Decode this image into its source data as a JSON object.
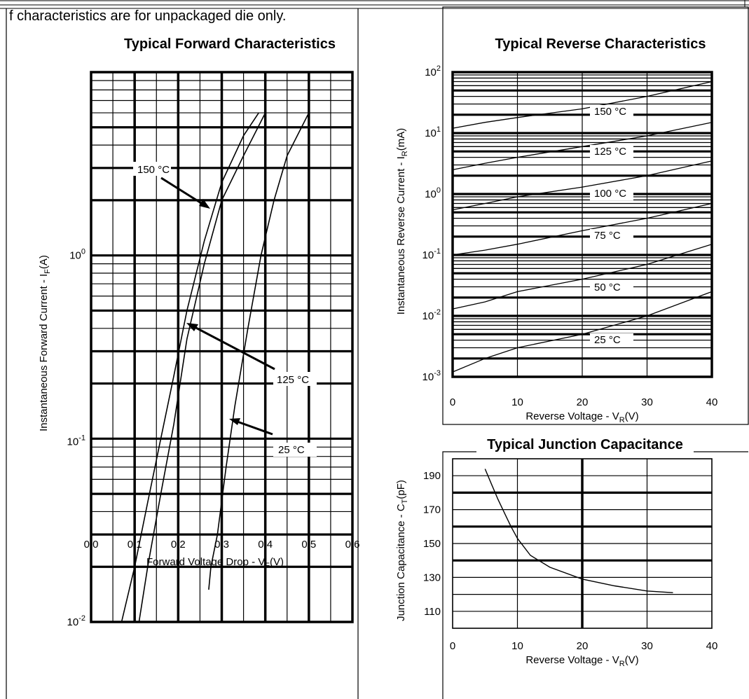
{
  "note": "f characteristics are for unpackaged die only.",
  "charts": {
    "forward": {
      "title": "Typical Forward Characteristics",
      "xlabel": "Forward Voltage Drop - V",
      "xlabel_sub": "F",
      "xlabel_unit": "(V)",
      "ylabel": "Instantaneous Forward Current - I",
      "ylabel_sub": "F",
      "ylabel_unit": "(A)",
      "xticks": [
        "0.0",
        "0.1",
        "0.2",
        "0.3",
        "0.4",
        "0.5",
        "0.6"
      ],
      "ytick_labels": [
        {
          "base": "10",
          "exp": "-2",
          "value": 0.01
        },
        {
          "base": "10",
          "exp": "-1",
          "value": 0.1
        },
        {
          "base": "10",
          "exp": "0",
          "value": 1
        }
      ],
      "annotations": [
        "150 °C",
        "125 °C",
        "25 °C"
      ]
    },
    "reverse": {
      "title": "Typical Reverse Characteristics",
      "xlabel": "Reverse Voltage - V",
      "xlabel_sub": "R",
      "xlabel_unit": "(V)",
      "ylabel": "Instantaneous Reverse Current - I",
      "ylabel_sub": "R",
      "ylabel_unit": "(mA)",
      "xticks": [
        "0",
        "10",
        "20",
        "30",
        "40"
      ],
      "ytick_labels": [
        {
          "base": "10",
          "exp": "-3",
          "value": 0.001
        },
        {
          "base": "10",
          "exp": "-2",
          "value": 0.01
        },
        {
          "base": "10",
          "exp": "-1",
          "value": 0.1
        },
        {
          "base": "10",
          "exp": "0",
          "value": 1
        },
        {
          "base": "10",
          "exp": "1",
          "value": 10
        },
        {
          "base": "10",
          "exp": "2",
          "value": 100
        }
      ],
      "curve_labels": [
        "150 °C",
        "125 °C",
        "100 °C",
        "75 °C",
        "50 °C",
        "25 °C"
      ]
    },
    "capacitance": {
      "title": "Typical Junction Capacitance",
      "xlabel": "Reverse Voltage - V",
      "xlabel_sub": "R",
      "xlabel_unit": "(V)",
      "ylabel": "Junction Capacitance - C",
      "ylabel_sub": "T",
      "ylabel_unit": "(pF)",
      "xticks": [
        "0",
        "10",
        "20",
        "30",
        "40"
      ],
      "yticks": [
        "110",
        "130",
        "150",
        "170",
        "190"
      ]
    }
  },
  "chart_data": [
    {
      "type": "line",
      "title": "Typical Forward Characteristics",
      "xlabel": "Forward Voltage Drop - VF (V)",
      "ylabel": "Instantaneous Forward Current - IF (A)",
      "yscale": "log",
      "xlim": [
        0.0,
        0.6
      ],
      "ylim": [
        0.01,
        10
      ],
      "grid": true,
      "series": [
        {
          "name": "150 °C",
          "x": [
            0.07,
            0.1,
            0.13,
            0.16,
            0.19,
            0.22,
            0.26,
            0.3,
            0.35,
            0.385
          ],
          "y": [
            0.01,
            0.02,
            0.045,
            0.1,
            0.22,
            0.5,
            1.2,
            2.5,
            4.5,
            6
          ]
        },
        {
          "name": "125 °C",
          "x": [
            0.11,
            0.13,
            0.16,
            0.19,
            0.22,
            0.26,
            0.3,
            0.35,
            0.4
          ],
          "y": [
            0.01,
            0.02,
            0.05,
            0.12,
            0.35,
            0.9,
            2.0,
            3.5,
            6
          ]
        },
        {
          "name": "25 °C",
          "x": [
            0.27,
            0.275,
            0.29,
            0.31,
            0.33,
            0.36,
            0.39,
            0.42,
            0.45,
            0.5
          ],
          "y": [
            0.015,
            0.02,
            0.03,
            0.07,
            0.15,
            0.4,
            1.0,
            2.0,
            3.5,
            6
          ]
        }
      ]
    },
    {
      "type": "line",
      "title": "Typical Reverse Characteristics",
      "xlabel": "Reverse Voltage - VR (V)",
      "ylabel": "Instantaneous Reverse Current - IR (mA)",
      "yscale": "log",
      "xlim": [
        0,
        40
      ],
      "ylim": [
        0.001,
        100
      ],
      "grid": true,
      "series": [
        {
          "name": "150 °C",
          "x": [
            0,
            5,
            10,
            20,
            30,
            40
          ],
          "y": [
            12,
            15,
            18,
            25,
            40,
            70
          ]
        },
        {
          "name": "125 °C",
          "x": [
            0,
            5,
            10,
            20,
            30,
            40
          ],
          "y": [
            2.5,
            3.2,
            4,
            6,
            9,
            15
          ]
        },
        {
          "name": "100 °C",
          "x": [
            0,
            5,
            10,
            20,
            30,
            40
          ],
          "y": [
            0.55,
            0.7,
            0.9,
            1.3,
            2,
            3.5
          ]
        },
        {
          "name": "75 °C",
          "x": [
            0,
            5,
            10,
            20,
            30,
            40
          ],
          "y": [
            0.1,
            0.12,
            0.15,
            0.25,
            0.4,
            0.7
          ]
        },
        {
          "name": "50 °C",
          "x": [
            0,
            5,
            10,
            20,
            30,
            40
          ],
          "y": [
            0.013,
            0.017,
            0.025,
            0.04,
            0.07,
            0.15
          ]
        },
        {
          "name": "25 °C",
          "x": [
            0,
            5,
            10,
            20,
            30,
            40
          ],
          "y": [
            0.0012,
            0.002,
            0.003,
            0.005,
            0.01,
            0.025
          ]
        }
      ]
    },
    {
      "type": "line",
      "title": "Typical Junction Capacitance",
      "xlabel": "Reverse Voltage - VR (V)",
      "ylabel": "Junction Capacitance - CT (pF)",
      "xlim": [
        0,
        40
      ],
      "ylim": [
        100,
        200
      ],
      "grid": true,
      "series": [
        {
          "x": [
            5,
            6,
            7,
            8,
            9,
            10,
            12,
            15,
            20,
            25,
            30,
            34
          ],
          "y": [
            194,
            185,
            176,
            168,
            160,
            153,
            143,
            136,
            129,
            125,
            122,
            121
          ]
        }
      ]
    }
  ]
}
